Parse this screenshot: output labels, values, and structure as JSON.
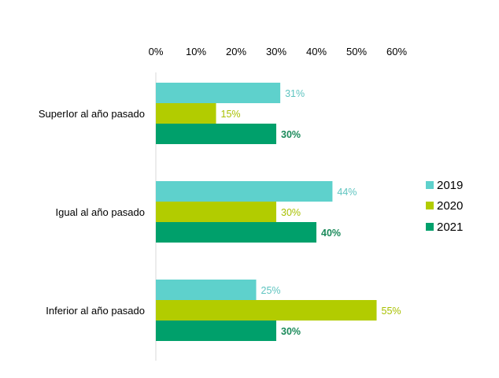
{
  "chart_data": {
    "type": "bar",
    "orientation": "horizontal",
    "categories": [
      "SuperIor al año pasado",
      "Igual al año pasado",
      "Inferior al año pasado"
    ],
    "series": [
      {
        "name": "2019",
        "color": "#5ed1cc",
        "values": [
          31,
          44,
          25
        ],
        "labels": [
          "31%",
          "44%",
          "25%"
        ]
      },
      {
        "name": "2020",
        "color": "#b2cc00",
        "values": [
          15,
          30,
          55
        ],
        "labels": [
          "15%",
          "30%",
          "55%"
        ]
      },
      {
        "name": "2021",
        "color": "#00a06b",
        "values": [
          30,
          40,
          30
        ],
        "labels": [
          "30%",
          "40%",
          "30%"
        ]
      }
    ],
    "x_ticks": [
      "0%",
      "10%",
      "20%",
      "30%",
      "40%",
      "50%",
      "60%"
    ],
    "x_tick_values": [
      0,
      10,
      20,
      30,
      40,
      50,
      60
    ],
    "xlim": [
      0,
      60
    ],
    "x_axis_position": "top",
    "grid": false,
    "legend_position": "right",
    "label_colors": [
      "#5ec4c0",
      "#a8c000",
      "#1a8a5a"
    ]
  }
}
